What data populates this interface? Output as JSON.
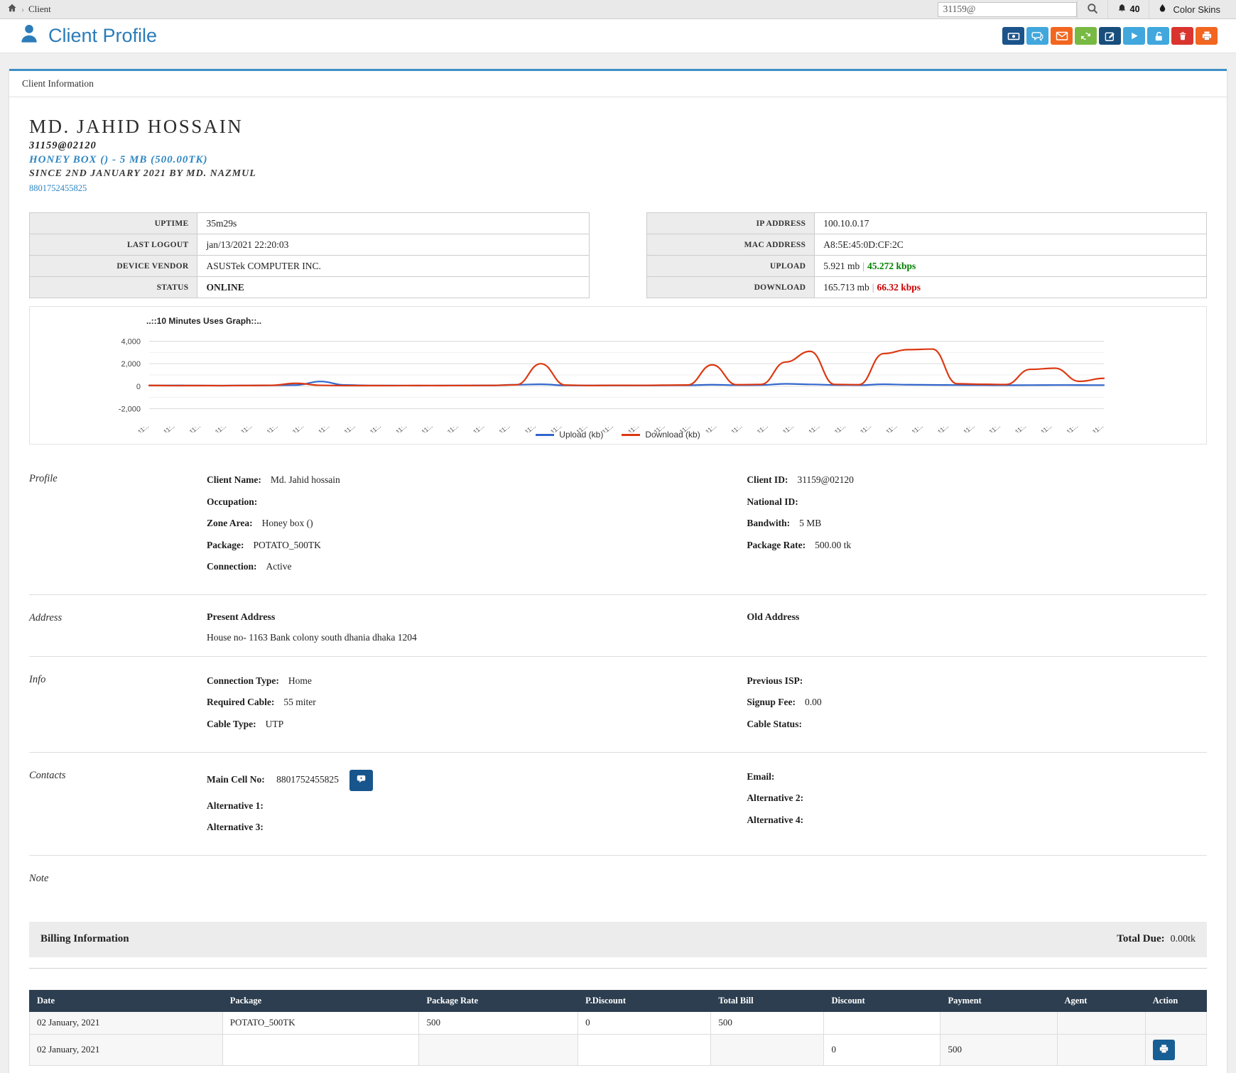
{
  "topbar": {
    "breadcrumb_item": "Client",
    "search_value": "31159@",
    "notification_count": "40",
    "color_skins_label": "Color Skins"
  },
  "header": {
    "title": "Client Profile",
    "action_icons": [
      "money-icon",
      "chat-icon",
      "mail-icon",
      "refresh-icon",
      "edit-icon",
      "play-icon",
      "unlock-icon",
      "trash-icon",
      "print-icon"
    ]
  },
  "tab": {
    "label": "Client Information"
  },
  "identity": {
    "name": "MD. JAHID HOSSAIN",
    "client_id": "31159@02120",
    "package_line": "HONEY BOX () - 5 MB (500.00TK)",
    "since_line": "SINCE 2ND JANUARY 2021 BY MD. NAZMUL",
    "phone": "8801752455825"
  },
  "status_tables": {
    "left": [
      {
        "label": "UPTIME",
        "value": "35m29s"
      },
      {
        "label": "LAST LOGOUT",
        "value": "jan/13/2021 22:20:03"
      },
      {
        "label": "DEVICE VENDOR",
        "value": "ASUSTek COMPUTER INC."
      },
      {
        "label": "STATUS",
        "value": "ONLINE"
      }
    ],
    "right": [
      {
        "label": "IP ADDRESS",
        "value": "100.10.0.17"
      },
      {
        "label": "MAC ADDRESS",
        "value": "A8:5E:45:0D:CF:2C"
      },
      {
        "label": "UPLOAD",
        "value_mb": "5.921 mb",
        "separator": "|",
        "value_kbps": "45.272 kbps"
      },
      {
        "label": "DOWNLOAD",
        "value_mb": "165.713 mb",
        "separator": "|",
        "value_kbps": "66.32 kbps"
      }
    ]
  },
  "chart_data": {
    "type": "line",
    "title": "..::10 Minutes Uses Graph::..",
    "xlabel": "",
    "ylabel": "",
    "ylim": [
      -2000,
      4000
    ],
    "y_ticks": [
      4000,
      2000,
      0,
      -2000
    ],
    "x_tick_label": "11:..",
    "x_tick_count": 38,
    "grid": true,
    "legend_position": "bottom",
    "series": [
      {
        "name": "Upload (kb)",
        "color": "#3366cc",
        "values": [
          60,
          70,
          60,
          55,
          65,
          75,
          100,
          420,
          110,
          65,
          60,
          55,
          60,
          65,
          70,
          130,
          170,
          75,
          65,
          70,
          65,
          75,
          85,
          130,
          95,
          105,
          210,
          160,
          110,
          95,
          170,
          130,
          115,
          105,
          95,
          90,
          95,
          105,
          100,
          95
        ]
      },
      {
        "name": "Download (kb)",
        "color": "#dc3912",
        "values": [
          70,
          50,
          55,
          50,
          60,
          80,
          260,
          80,
          50,
          55,
          50,
          60,
          55,
          60,
          70,
          120,
          2000,
          100,
          60,
          80,
          70,
          90,
          110,
          1900,
          130,
          160,
          2150,
          3100,
          160,
          130,
          2900,
          3250,
          3300,
          220,
          170,
          150,
          1500,
          1600,
          430,
          700
        ]
      }
    ]
  },
  "sections": {
    "profile": {
      "heading": "Profile",
      "left": [
        {
          "label": "Client Name:",
          "value": "Md. Jahid hossain"
        },
        {
          "label": "Occupation:",
          "value": ""
        },
        {
          "label": "Zone Area:",
          "value": "Honey box ()"
        },
        {
          "label": "Package:",
          "value": "POTATO_500TK"
        },
        {
          "label": "Connection:",
          "value": "Active"
        }
      ],
      "right": [
        {
          "label": "Client ID:",
          "value": "31159@02120"
        },
        {
          "label": "National ID:",
          "value": ""
        },
        {
          "label": "Bandwith:",
          "value": "5 MB"
        },
        {
          "label": "Package Rate:",
          "value": "500.00 tk"
        }
      ]
    },
    "address": {
      "heading": "Address",
      "present_label": "Present Address",
      "present_value": "House no- 1163 Bank colony south dhania dhaka 1204",
      "old_label": "Old Address",
      "old_value": ""
    },
    "info": {
      "heading": "Info",
      "left": [
        {
          "label": "Connection Type:",
          "value": "Home"
        },
        {
          "label": "Required Cable:",
          "value": "55 miter"
        },
        {
          "label": "Cable Type:",
          "value": "UTP"
        }
      ],
      "right": [
        {
          "label": "Previous ISP:",
          "value": ""
        },
        {
          "label": "Signup Fee:",
          "value": "0.00"
        },
        {
          "label": "Cable Status:",
          "value": ""
        }
      ]
    },
    "contacts": {
      "heading": "Contacts",
      "main_cell_label": "Main Cell No:",
      "main_cell_value": "8801752455825",
      "left": [
        {
          "label": "Alternative 1:",
          "value": ""
        },
        {
          "label": "Alternative 3:",
          "value": ""
        }
      ],
      "right": [
        {
          "label": "Email:",
          "value": ""
        },
        {
          "label": "Alternative 2:",
          "value": ""
        },
        {
          "label": "Alternative 4:",
          "value": ""
        }
      ]
    },
    "note": {
      "heading": "Note"
    }
  },
  "billing": {
    "title": "Billing Information",
    "total_due_label": "Total Due:",
    "total_due_value": "0.00tk",
    "table": {
      "headers": [
        "Date",
        "Package",
        "Package Rate",
        "P.Discount",
        "Total Bill",
        "Discount",
        "Payment",
        "Agent",
        "Action"
      ],
      "rows": [
        {
          "date": "02 January, 2021",
          "package": "POTATO_500TK",
          "package_rate": "500",
          "p_discount": "0",
          "total_bill": "500",
          "discount": "",
          "payment": "",
          "agent": ""
        },
        {
          "date": "02 January, 2021",
          "package": "",
          "package_rate": "",
          "p_discount": "",
          "total_bill": "",
          "discount": "0",
          "payment": "500",
          "agent": ""
        }
      ]
    }
  }
}
